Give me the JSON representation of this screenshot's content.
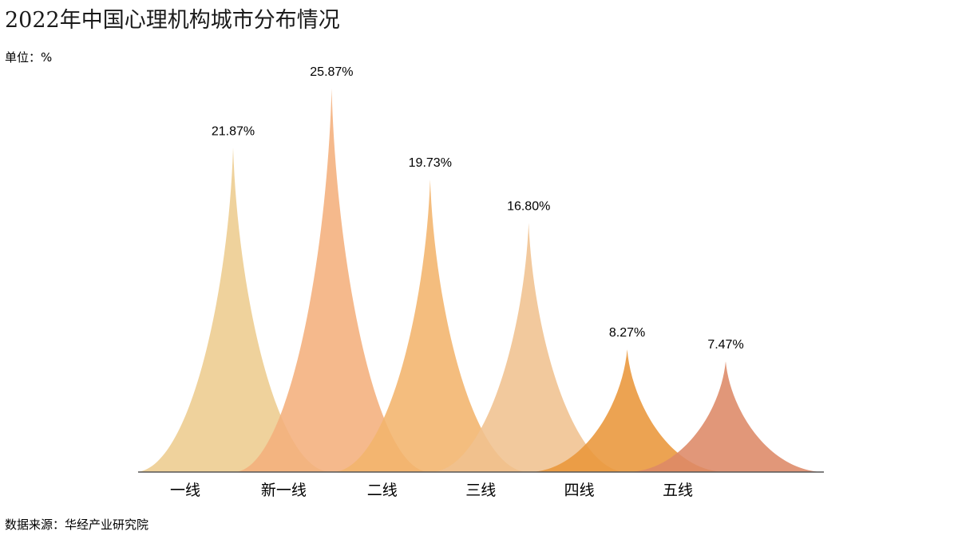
{
  "title": "2022年中国心理机构城市分布情况",
  "unit_label": "单位：%",
  "source_label": "数据来源：华经产业研究院",
  "chart_data": {
    "type": "area",
    "title": "2022年中国心理机构城市分布情况",
    "unit": "%",
    "categories": [
      "一线",
      "新一线",
      "二线",
      "三线",
      "四线",
      "五线"
    ],
    "values": [
      21.87,
      25.87,
      19.73,
      16.8,
      8.27,
      7.47
    ],
    "value_labels": [
      "21.87%",
      "25.87%",
      "19.73%",
      "16.80%",
      "8.27%",
      "7.47%"
    ],
    "colors": [
      "#EDCC8E",
      "#F4AF7C",
      "#F2B46C",
      "#F0C28F",
      "#E9963A",
      "#DD8966"
    ],
    "ylim": [
      0,
      27
    ],
    "grid": false,
    "legend": "none"
  }
}
